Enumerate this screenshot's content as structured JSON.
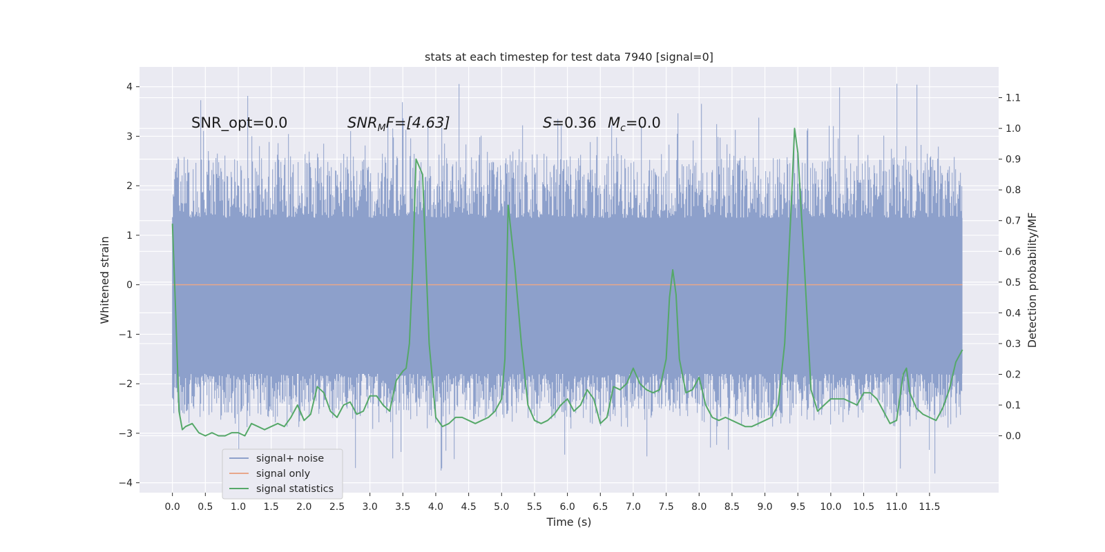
{
  "chart_data": {
    "type": "line",
    "title": "stats at each timestep for test data 7940 [signal=0]",
    "xlabel": "Time (s)",
    "ylabel": "Whitened strain",
    "y2label": "Detection probability/MF",
    "xlim": [
      -0.5,
      12.55
    ],
    "ylim": [
      -4.2,
      4.4
    ],
    "y2lim": [
      -0.185,
      1.2
    ],
    "xticks": [
      0.0,
      0.5,
      1.0,
      1.5,
      2.0,
      2.5,
      3.0,
      3.5,
      4.0,
      4.5,
      5.0,
      5.5,
      6.0,
      6.5,
      7.0,
      7.5,
      8.0,
      8.5,
      9.0,
      9.5,
      10.0,
      10.5,
      11.0,
      11.5
    ],
    "xtick_labels": [
      "0.0",
      "0.5",
      "1.0",
      "1.5",
      "2.0",
      "2.5",
      "3.0",
      "3.5",
      "4.0",
      "4.5",
      "5.0",
      "5.5",
      "6.0",
      "6.5",
      "7.0",
      "7.5",
      "8.0",
      "8.5",
      "9.0",
      "9.5",
      "10.0",
      "10.5",
      "11.0",
      "11.5"
    ],
    "yticks": [
      -4,
      -3,
      -2,
      -1,
      0,
      1,
      2,
      3,
      4
    ],
    "ytick_labels": [
      "−4",
      "−3",
      "−2",
      "−1",
      "0",
      "1",
      "2",
      "3",
      "4"
    ],
    "y2ticks": [
      0.0,
      0.1,
      0.2,
      0.3,
      0.4,
      0.5,
      0.6,
      0.7,
      0.8,
      0.9,
      1.0,
      1.1
    ],
    "y2tick_labels": [
      "0.0",
      "0.1",
      "0.2",
      "0.3",
      "0.4",
      "0.5",
      "0.6",
      "0.7",
      "0.8",
      "0.9",
      "1.0",
      "1.1"
    ],
    "grid": true,
    "legend_placement": "lower-left",
    "series": [
      {
        "name": "signal+ noise",
        "color": "#8da0cb",
        "axis": "left",
        "kind": "noise-band",
        "x_range": [
          0.0,
          12.0
        ],
        "core_range": [
          -1.8,
          1.35
        ],
        "spike_high_max": 4.1,
        "spike_low_min": -3.85
      },
      {
        "name": "signal only",
        "color": "#e8a68a",
        "axis": "left",
        "x": [
          0.0,
          12.0
        ],
        "values": [
          0.0,
          0.0
        ]
      },
      {
        "name": "signal statistics",
        "color": "#55a868",
        "axis": "right",
        "x": [
          0.0,
          0.05,
          0.1,
          0.15,
          0.2,
          0.3,
          0.4,
          0.5,
          0.6,
          0.7,
          0.8,
          0.9,
          1.0,
          1.1,
          1.2,
          1.3,
          1.4,
          1.5,
          1.6,
          1.7,
          1.8,
          1.9,
          2.0,
          2.1,
          2.2,
          2.3,
          2.4,
          2.5,
          2.6,
          2.7,
          2.8,
          2.9,
          3.0,
          3.1,
          3.2,
          3.3,
          3.4,
          3.5,
          3.55,
          3.6,
          3.65,
          3.7,
          3.8,
          3.9,
          4.0,
          4.1,
          4.2,
          4.3,
          4.4,
          4.5,
          4.6,
          4.7,
          4.8,
          4.9,
          5.0,
          5.05,
          5.1,
          5.2,
          5.3,
          5.4,
          5.5,
          5.6,
          5.7,
          5.8,
          5.9,
          6.0,
          6.1,
          6.2,
          6.3,
          6.4,
          6.5,
          6.6,
          6.7,
          6.8,
          6.9,
          7.0,
          7.1,
          7.2,
          7.3,
          7.4,
          7.5,
          7.55,
          7.6,
          7.65,
          7.7,
          7.8,
          7.9,
          8.0,
          8.1,
          8.2,
          8.3,
          8.4,
          8.5,
          8.6,
          8.7,
          8.8,
          8.9,
          9.0,
          9.1,
          9.2,
          9.3,
          9.4,
          9.45,
          9.5,
          9.6,
          9.7,
          9.8,
          9.9,
          10.0,
          10.1,
          10.2,
          10.3,
          10.4,
          10.5,
          10.6,
          10.7,
          10.8,
          10.9,
          11.0,
          11.1,
          11.15,
          11.2,
          11.3,
          11.4,
          11.5,
          11.6,
          11.7,
          11.8,
          11.9,
          12.0
        ],
        "values": [
          0.69,
          0.4,
          0.08,
          0.02,
          0.03,
          0.04,
          0.01,
          0.0,
          0.01,
          0.0,
          0.0,
          0.01,
          0.01,
          0.0,
          0.04,
          0.03,
          0.02,
          0.03,
          0.04,
          0.03,
          0.06,
          0.1,
          0.05,
          0.07,
          0.16,
          0.14,
          0.08,
          0.06,
          0.1,
          0.11,
          0.07,
          0.08,
          0.13,
          0.13,
          0.1,
          0.08,
          0.18,
          0.21,
          0.22,
          0.3,
          0.55,
          0.9,
          0.85,
          0.3,
          0.06,
          0.03,
          0.04,
          0.06,
          0.06,
          0.05,
          0.04,
          0.05,
          0.06,
          0.08,
          0.12,
          0.25,
          0.75,
          0.55,
          0.3,
          0.1,
          0.05,
          0.04,
          0.05,
          0.07,
          0.1,
          0.12,
          0.08,
          0.1,
          0.15,
          0.12,
          0.04,
          0.06,
          0.16,
          0.15,
          0.17,
          0.22,
          0.17,
          0.15,
          0.14,
          0.15,
          0.25,
          0.45,
          0.54,
          0.46,
          0.25,
          0.14,
          0.15,
          0.19,
          0.1,
          0.06,
          0.05,
          0.06,
          0.05,
          0.04,
          0.03,
          0.03,
          0.04,
          0.05,
          0.06,
          0.1,
          0.3,
          0.75,
          1.0,
          0.92,
          0.55,
          0.15,
          0.08,
          0.1,
          0.12,
          0.12,
          0.12,
          0.11,
          0.1,
          0.14,
          0.14,
          0.12,
          0.08,
          0.04,
          0.05,
          0.2,
          0.22,
          0.14,
          0.09,
          0.07,
          0.06,
          0.05,
          0.09,
          0.15,
          0.24,
          0.28
        ]
      }
    ],
    "annotations": [
      {
        "id": "snr-opt",
        "text": "SNR_opt=0.0"
      },
      {
        "id": "snr-mf",
        "base": "SNR",
        "sub": "M",
        "tail": "F=[4.63]"
      },
      {
        "id": "s-value",
        "base": "S",
        "tail": "=0.36"
      },
      {
        "id": "mc-value",
        "base": "M",
        "sub": "c",
        "tail": "=0.0"
      }
    ]
  }
}
